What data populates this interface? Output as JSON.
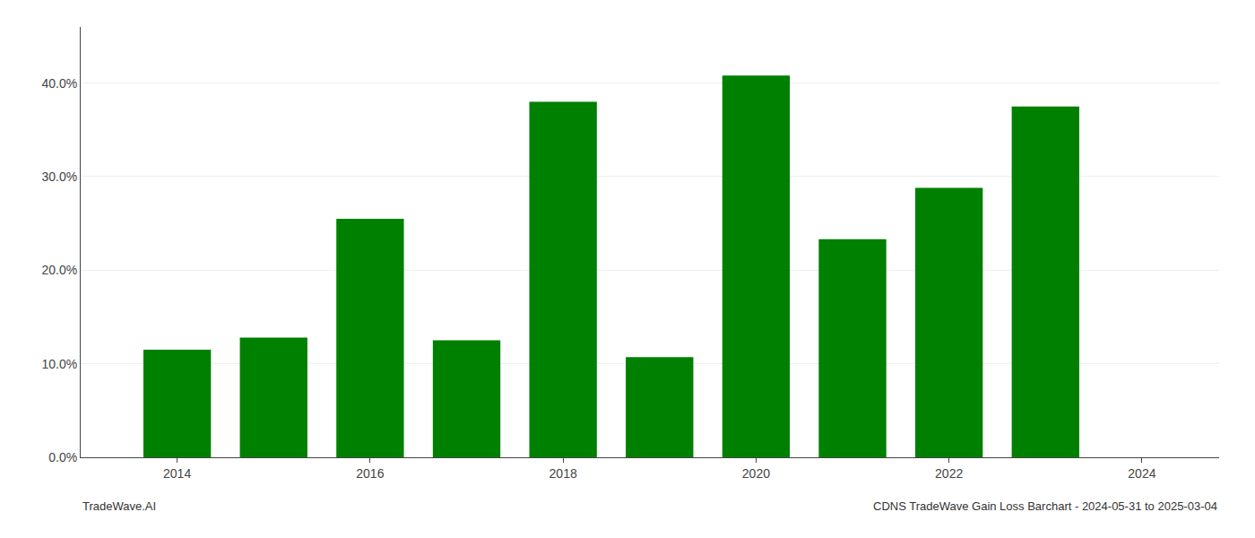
{
  "chart_data": {
    "type": "bar",
    "x": [
      2014,
      2015,
      2016,
      2017,
      2018,
      2019,
      2020,
      2021,
      2022,
      2023
    ],
    "values": [
      0.115,
      0.128,
      0.255,
      0.125,
      0.38,
      0.107,
      0.408,
      0.233,
      0.288,
      0.375
    ],
    "color": "#008000",
    "xlim": [
      2013.0,
      2024.8
    ],
    "xticks": [
      2014,
      2016,
      2018,
      2020,
      2022,
      2024
    ],
    "ylim": [
      0,
      0.46
    ],
    "yticks": [
      {
        "value": 0.0,
        "label": "0.0%"
      },
      {
        "value": 0.1,
        "label": "10.0%"
      },
      {
        "value": 0.2,
        "label": "20.0%"
      },
      {
        "value": 0.3,
        "label": "30.0%"
      },
      {
        "value": 0.4,
        "label": "40.0%"
      }
    ],
    "grid": true,
    "annotations": [
      "TradeWave.AI",
      "CDNS TradeWave Gain Loss Barchart - 2024-05-31 to 2025-03-04"
    ]
  }
}
